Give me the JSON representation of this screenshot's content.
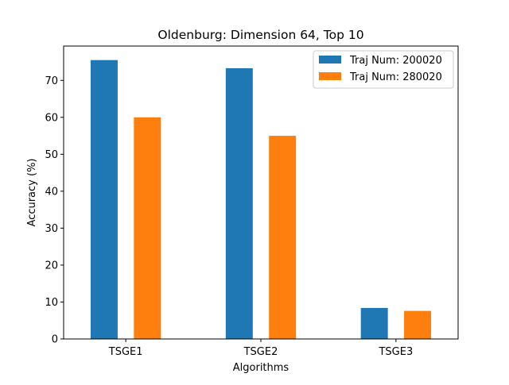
{
  "chart_data": {
    "type": "bar",
    "title": "Oldenburg: Dimension 64, Top 10",
    "xlabel": "Algorithms",
    "ylabel": "Accuracy (%)",
    "categories": [
      "TSGE1",
      "TSGE2",
      "TSGE3"
    ],
    "series": [
      {
        "name": "Traj Num: 200020",
        "color": "#1f77b4",
        "values": [
          75.5,
          73.3,
          8.4
        ]
      },
      {
        "name": "Traj Num: 280020",
        "color": "#ff7f0e",
        "values": [
          60.0,
          55.0,
          7.6
        ]
      }
    ],
    "ylim": [
      0,
      79.3
    ],
    "yticks": [
      0,
      10,
      20,
      30,
      40,
      50,
      60,
      70
    ],
    "grid": false,
    "legend_position": "top-right"
  }
}
